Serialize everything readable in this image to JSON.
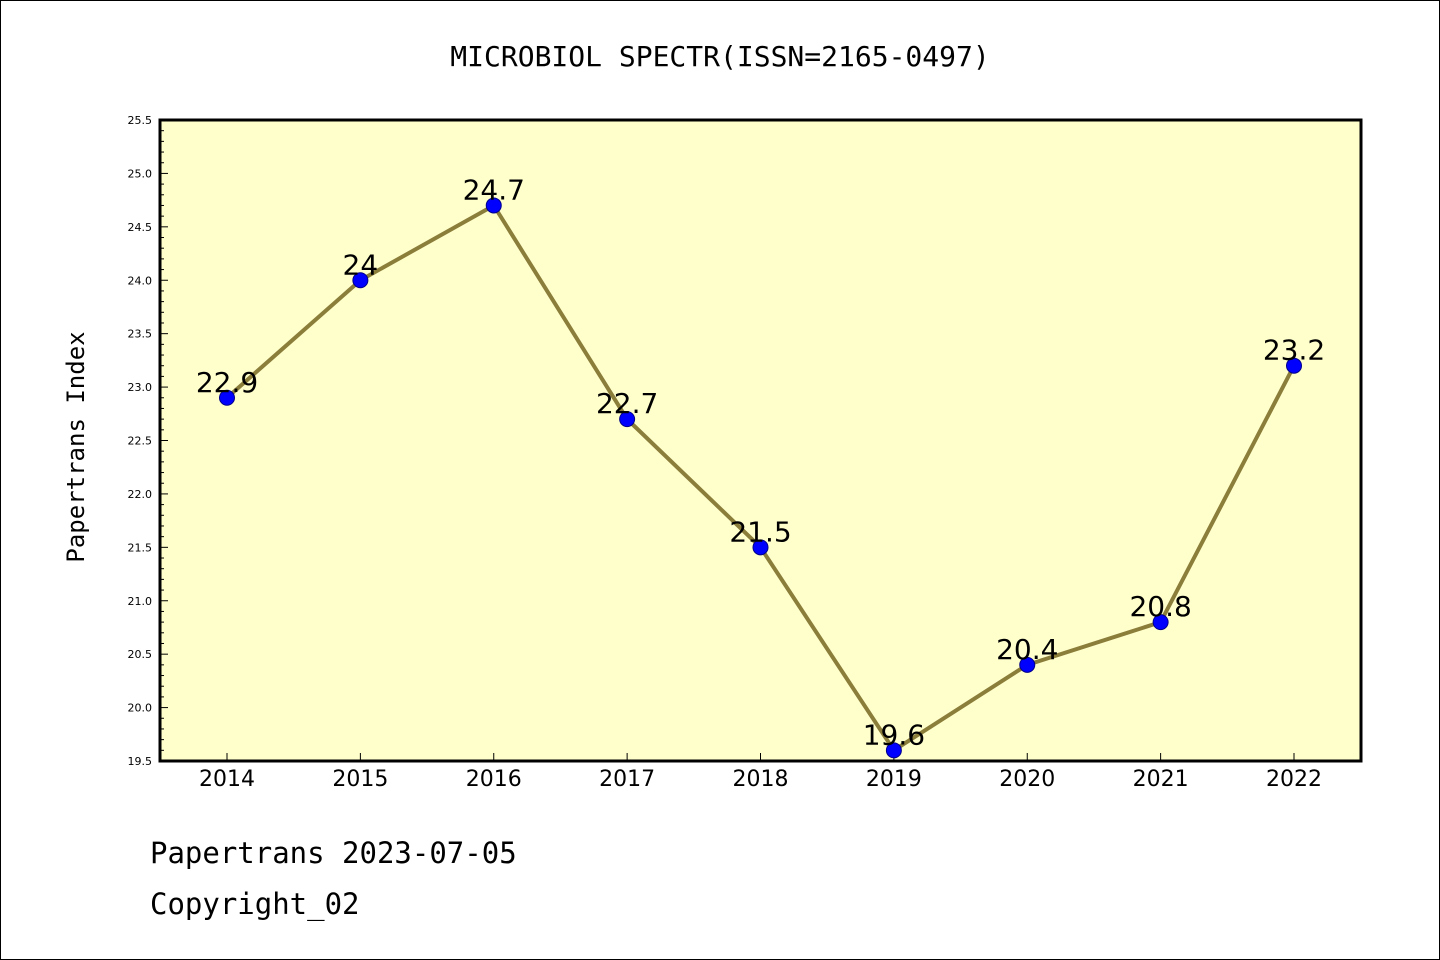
{
  "chart_data": {
    "type": "line",
    "title": "MICROBIOL SPECTR(ISSN=2165-0497)",
    "ylabel": "Papertrans Index",
    "xlabel": "",
    "categories": [
      "2014",
      "2015",
      "2016",
      "2017",
      "2018",
      "2019",
      "2020",
      "2021",
      "2022"
    ],
    "values": [
      22.9,
      24,
      24.7,
      22.7,
      21.5,
      19.6,
      20.4,
      20.8,
      23.2
    ],
    "data_labels": [
      "22.9",
      "24",
      "24.7",
      "22.7",
      "21.5",
      "19.6",
      "20.4",
      "20.8",
      "23.2"
    ],
    "ylim": [
      19.5,
      25.5
    ],
    "yticks": [
      "19.5",
      "20.0",
      "20.5",
      "21.0",
      "21.5",
      "22.0",
      "22.5",
      "23.0",
      "23.5",
      "24.0",
      "24.5",
      "25.0",
      "25.5"
    ],
    "grid": false,
    "legend": "none",
    "colors": {
      "plot_background": "#ffffcc",
      "line": "#8b7d3a",
      "marker": "#0000ff"
    }
  },
  "footer": {
    "line1": "Papertrans 2023-07-05",
    "line2": "Copyright_02"
  }
}
